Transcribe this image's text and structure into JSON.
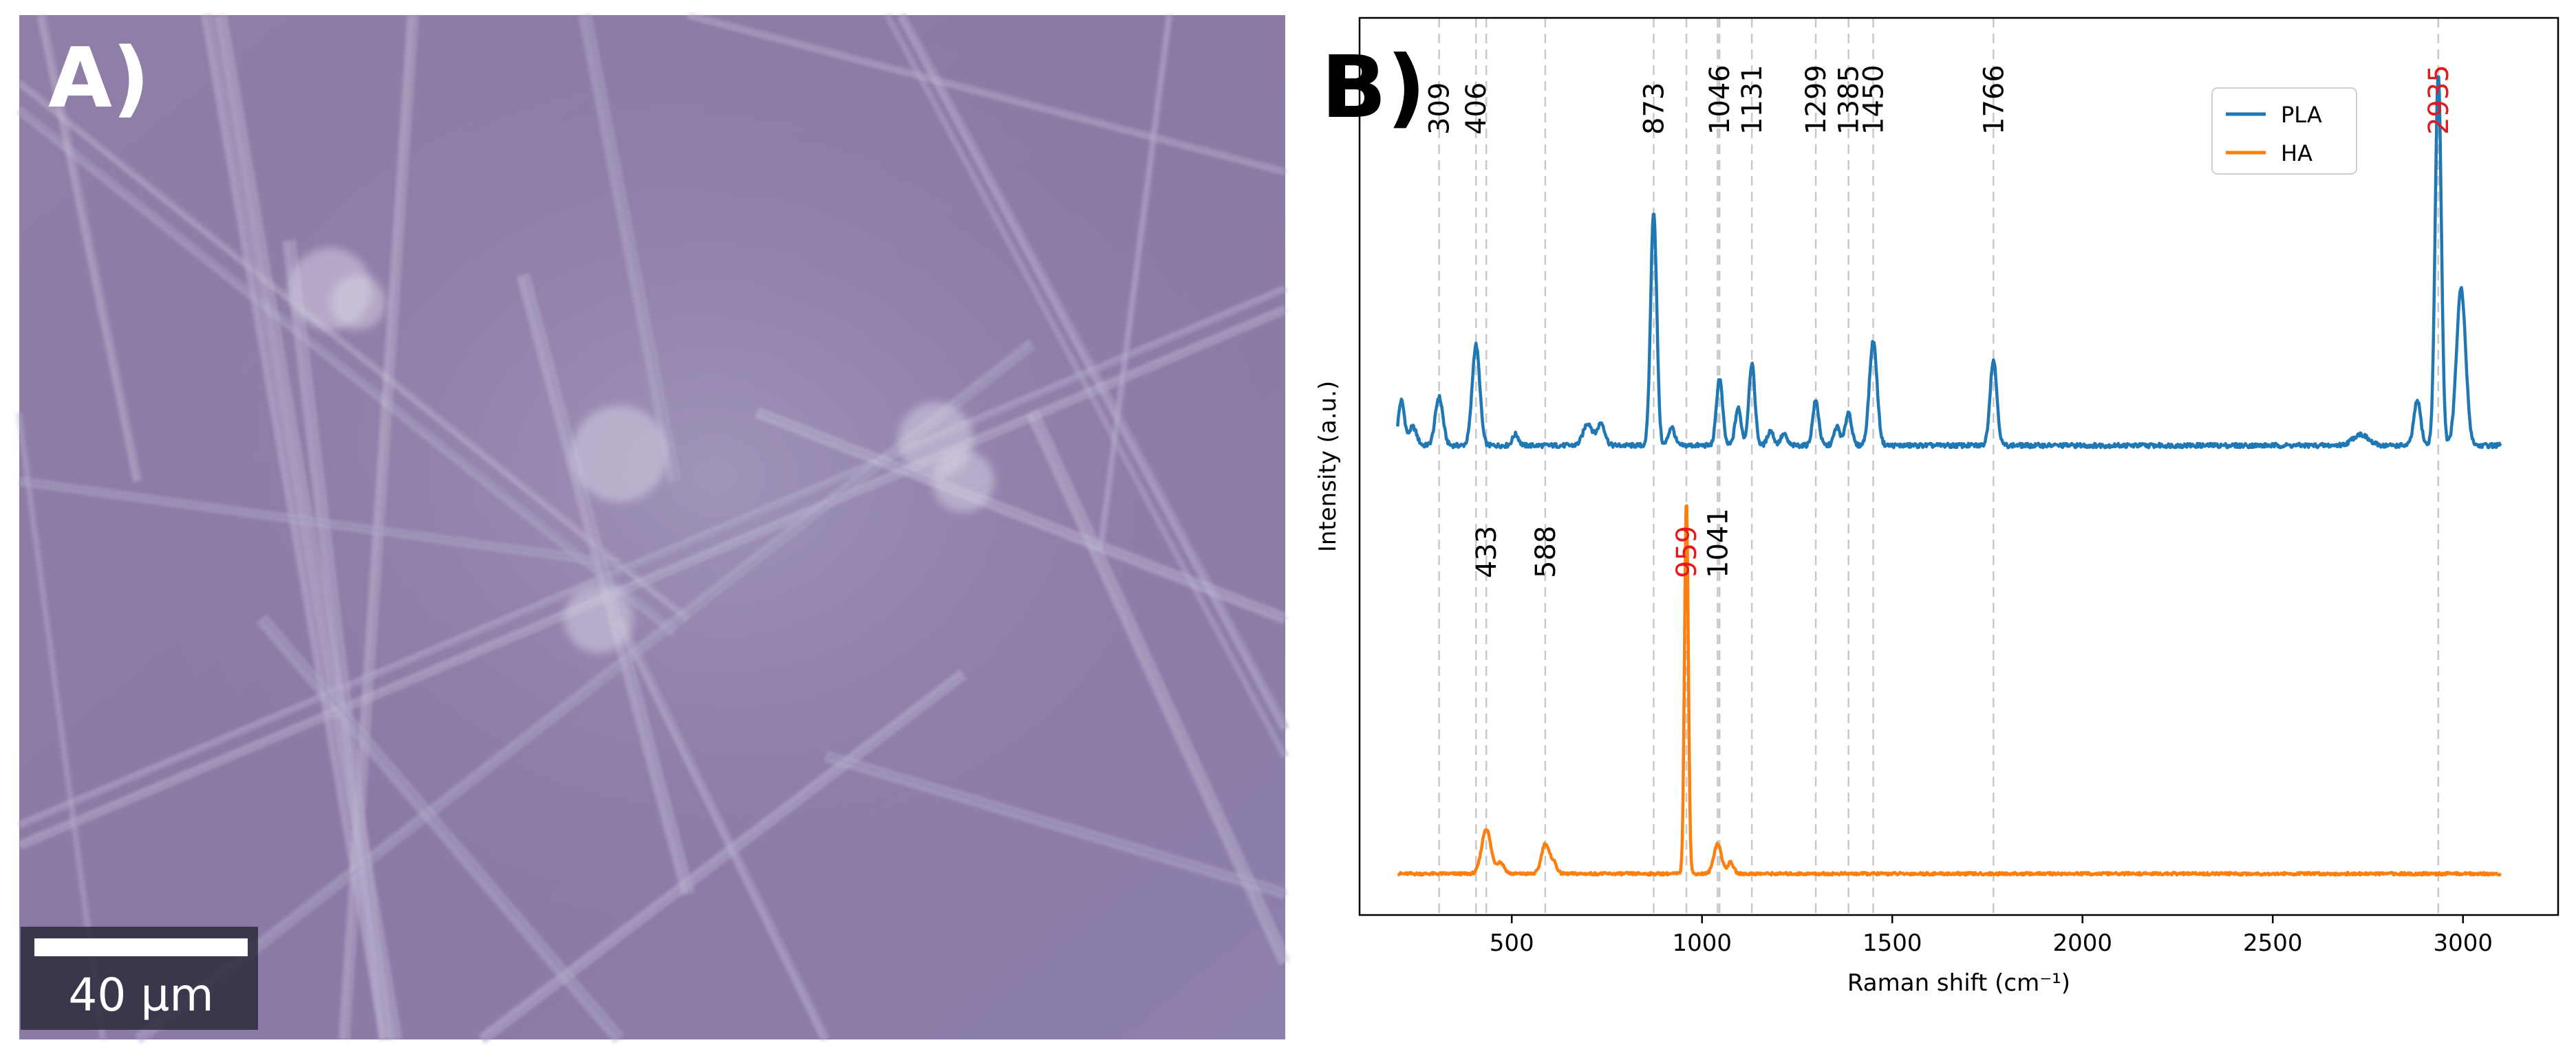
{
  "panel_a": {
    "label": "A)",
    "scale_bar_label": "40 µm"
  },
  "panel_b": {
    "label": "B)"
  },
  "chart_data": {
    "type": "line",
    "xlabel": "Raman shift (cm⁻¹)",
    "ylabel": "Intensity (a.u.)",
    "xlim": [
      100,
      3250
    ],
    "xticks": [
      500,
      1000,
      1500,
      2000,
      2500,
      3000
    ],
    "ytick_labels": false,
    "legend": {
      "position": "top-right",
      "entries": [
        "PLA",
        "HA"
      ]
    },
    "colors": {
      "PLA": "#1f77b4",
      "HA": "#ff7f0e",
      "highlight": "#e31a1c",
      "vline": "#c8c8c8"
    },
    "vlines": [
      309,
      406,
      433,
      588,
      873,
      959,
      1041,
      1046,
      1131,
      1299,
      1385,
      1450,
      1766,
      2935
    ],
    "series": [
      {
        "name": "PLA",
        "color": "#1f77b4",
        "x_range": [
          200,
          3100
        ],
        "baseline": 0.0,
        "noise": 0.012,
        "peaks": [
          [
            210,
            0.12,
            8
          ],
          [
            240,
            0.05,
            10
          ],
          [
            309,
            0.13,
            10
          ],
          [
            406,
            0.27,
            10
          ],
          [
            510,
            0.03,
            8
          ],
          [
            700,
            0.06,
            12
          ],
          [
            735,
            0.06,
            10
          ],
          [
            873,
            0.63,
            8
          ],
          [
            920,
            0.05,
            8
          ],
          [
            1046,
            0.18,
            8
          ],
          [
            1095,
            0.1,
            8
          ],
          [
            1131,
            0.22,
            8
          ],
          [
            1180,
            0.04,
            8
          ],
          [
            1215,
            0.03,
            8
          ],
          [
            1299,
            0.12,
            8
          ],
          [
            1355,
            0.05,
            8
          ],
          [
            1385,
            0.09,
            8
          ],
          [
            1450,
            0.28,
            10
          ],
          [
            1766,
            0.23,
            9
          ],
          [
            2730,
            0.03,
            20
          ],
          [
            2880,
            0.12,
            9
          ],
          [
            2935,
            1.0,
            8
          ],
          [
            2995,
            0.42,
            12
          ]
        ]
      },
      {
        "name": "HA",
        "color": "#ff7f0e",
        "x_range": [
          200,
          3100
        ],
        "baseline": 0.0,
        "noise": 0.007,
        "peaks": [
          [
            433,
            0.12,
            12
          ],
          [
            470,
            0.03,
            10
          ],
          [
            588,
            0.08,
            10
          ],
          [
            610,
            0.03,
            8
          ],
          [
            959,
            1.0,
            5
          ],
          [
            1041,
            0.08,
            10
          ],
          [
            1075,
            0.03,
            8
          ]
        ]
      }
    ],
    "annotations": [
      {
        "text": "309",
        "x": 309,
        "series": "PLA",
        "color": "#000000"
      },
      {
        "text": "406",
        "x": 406,
        "series": "PLA",
        "color": "#000000"
      },
      {
        "text": "873",
        "x": 873,
        "series": "PLA",
        "color": "#000000"
      },
      {
        "text": "1046",
        "x": 1046,
        "series": "PLA",
        "color": "#000000"
      },
      {
        "text": "1131",
        "x": 1131,
        "series": "PLA",
        "color": "#000000"
      },
      {
        "text": "1299",
        "x": 1299,
        "series": "PLA",
        "color": "#000000"
      },
      {
        "text": "1385",
        "x": 1385,
        "series": "PLA",
        "color": "#000000"
      },
      {
        "text": "1450",
        "x": 1450,
        "series": "PLA",
        "color": "#000000"
      },
      {
        "text": "1766",
        "x": 1766,
        "series": "PLA",
        "color": "#000000"
      },
      {
        "text": "2935",
        "x": 2935,
        "series": "PLA",
        "color": "#e31a1c"
      },
      {
        "text": "433",
        "x": 433,
        "series": "HA",
        "color": "#000000"
      },
      {
        "text": "588",
        "x": 588,
        "series": "HA",
        "color": "#000000"
      },
      {
        "text": "959",
        "x": 959,
        "series": "HA",
        "color": "#e31a1c"
      },
      {
        "text": "1041",
        "x": 1041,
        "series": "HA",
        "color": "#000000"
      }
    ]
  }
}
